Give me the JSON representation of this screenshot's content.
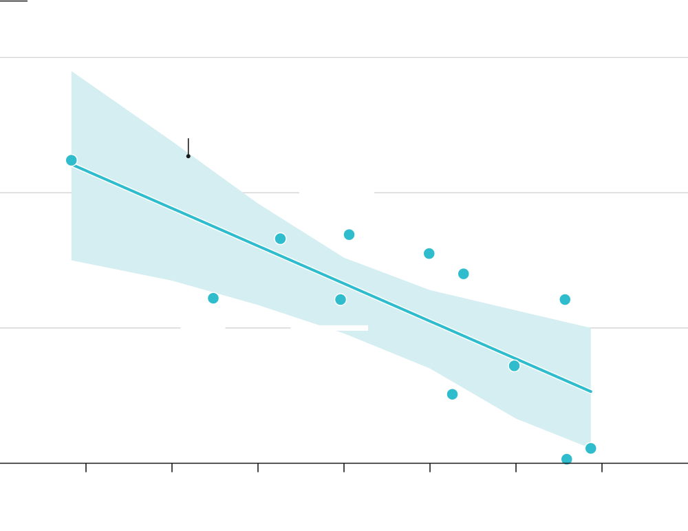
{
  "chart_data": {
    "type": "scatter",
    "title": "",
    "xlabel": "",
    "ylabel": "",
    "x_ticks": [
      1,
      2,
      3,
      4,
      5,
      6,
      7
    ],
    "x_tick_labels": [],
    "y_gridlines": [
      0,
      1,
      2,
      3
    ],
    "y_tick_labels": [],
    "xlim": [
      0.0,
      8.0
    ],
    "ylim": [
      0.0,
      3.0
    ],
    "grid": true,
    "legend": "none",
    "series": [
      {
        "points": [
          {
            "x": 0.83,
            "y": 2.24
          },
          {
            "x": 2.48,
            "y": 1.22
          },
          {
            "x": 3.26,
            "y": 1.66
          },
          {
            "x": 3.96,
            "y": 1.21
          },
          {
            "x": 4.06,
            "y": 1.69
          },
          {
            "x": 4.99,
            "y": 1.55
          },
          {
            "x": 5.26,
            "y": 0.51
          },
          {
            "x": 5.39,
            "y": 1.4
          },
          {
            "x": 5.98,
            "y": 0.72
          },
          {
            "x": 6.57,
            "y": 1.21
          },
          {
            "x": 6.59,
            "y": 0.03
          },
          {
            "x": 6.87,
            "y": 0.11
          }
        ]
      }
    ],
    "trend": {
      "x0": 0.83,
      "y0": 2.21,
      "x1": 6.87,
      "y1": 0.53
    },
    "confidence_band": {
      "x": [
        0.83,
        2.0,
        3.0,
        4.0,
        5.0,
        6.0,
        6.87
      ],
      "upper": [
        2.9,
        2.38,
        1.92,
        1.52,
        1.28,
        1.13,
        1.0
      ],
      "lower": [
        1.5,
        1.35,
        1.17,
        0.96,
        0.7,
        0.33,
        0.11
      ]
    },
    "annotation_marker": {
      "x": 2.19,
      "y": 2.27
    },
    "colors": {
      "points": "#2fbccd",
      "trend": "#2fbccd",
      "band": "#d4eef2",
      "grid": "#d2d2d2",
      "axis": "#1a1a1a"
    }
  }
}
